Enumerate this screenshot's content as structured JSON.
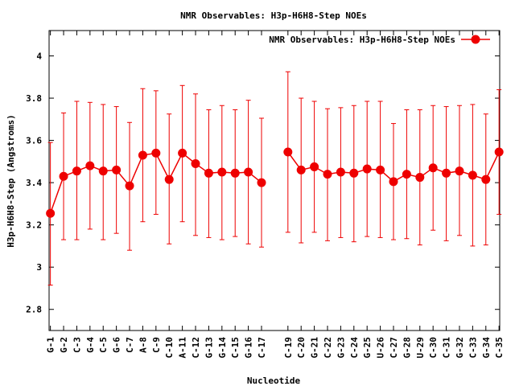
{
  "chart_data": {
    "type": "line",
    "title": "NMR Observables: H3p-H6H8-Step NOEs",
    "xlabel": "Nucleotide",
    "ylabel": "H3p-H6H8-Step (Angstroms)",
    "ylim": [
      2.7,
      4.12
    ],
    "yticks": [
      2.8,
      3,
      3.2,
      3.4,
      3.6,
      3.8,
      4
    ],
    "ytick_labels": [
      "2.8",
      "3",
      "3.2",
      "3.4",
      "3.6",
      "3.8",
      "4"
    ],
    "categories": [
      "G-1",
      "G-2",
      "C-3",
      "G-4",
      "C-5",
      "G-6",
      "C-7",
      "A-8",
      "C-9",
      "C-10",
      "A-11",
      "C-12",
      "G-13",
      "G-14",
      "C-15",
      "G-16",
      "C-17",
      "C-19",
      "C-20",
      "G-21",
      "C-22",
      "G-23",
      "C-24",
      "G-25",
      "U-26",
      "C-27",
      "G-28",
      "U-29",
      "C-30",
      "C-31",
      "G-32",
      "C-33",
      "G-34",
      "C-35"
    ],
    "positions": [
      1,
      2,
      3,
      4,
      5,
      6,
      7,
      8,
      9,
      10,
      11,
      12,
      13,
      14,
      15,
      16,
      17,
      19,
      20,
      21,
      22,
      23,
      24,
      25,
      26,
      27,
      28,
      29,
      30,
      31,
      32,
      33,
      34,
      35
    ],
    "xlim": [
      0.9,
      35.05
    ],
    "legend_position": "top-right",
    "grid": false,
    "series": [
      {
        "name": "NMR Observables: H3p-H6H8-Step NOEs",
        "color": "#ee0000",
        "values": [
          3.255,
          3.43,
          3.455,
          3.48,
          3.455,
          3.46,
          3.385,
          3.53,
          3.54,
          3.415,
          3.54,
          3.49,
          3.445,
          3.45,
          3.445,
          3.45,
          3.4,
          3.545,
          3.46,
          3.475,
          3.44,
          3.45,
          3.445,
          3.465,
          3.46,
          3.405,
          3.44,
          3.425,
          3.47,
          3.445,
          3.455,
          3.435,
          3.415,
          3.545
        ],
        "err_low": [
          2.915,
          3.13,
          3.13,
          3.18,
          3.13,
          3.16,
          3.08,
          3.215,
          3.25,
          3.11,
          3.215,
          3.15,
          3.14,
          3.13,
          3.145,
          3.11,
          3.095,
          3.165,
          3.115,
          3.165,
          3.125,
          3.14,
          3.12,
          3.145,
          3.14,
          3.13,
          3.135,
          3.105,
          3.175,
          3.125,
          3.15,
          3.1,
          3.105,
          3.25
        ],
        "err_high": [
          3.59,
          3.73,
          3.785,
          3.78,
          3.77,
          3.76,
          3.685,
          3.845,
          3.835,
          3.725,
          3.86,
          3.82,
          3.745,
          3.765,
          3.745,
          3.79,
          3.705,
          3.925,
          3.8,
          3.785,
          3.75,
          3.755,
          3.765,
          3.785,
          3.785,
          3.68,
          3.745,
          3.745,
          3.765,
          3.76,
          3.765,
          3.77,
          3.725,
          3.84
        ]
      }
    ]
  }
}
